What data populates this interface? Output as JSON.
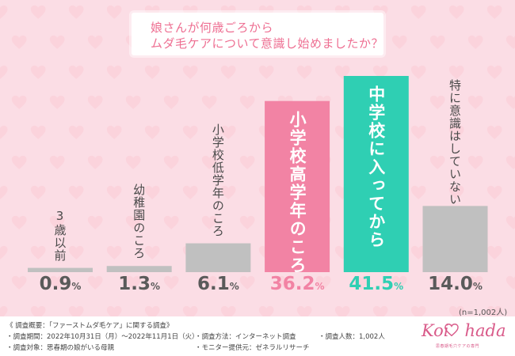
{
  "title": {
    "line1": "娘さんが何歳ごろから",
    "line2": "ムダ毛ケアについて意識し始めましたか？"
  },
  "chart_data": {
    "type": "bar",
    "categories": [
      "3歳以前",
      "幼稚園のころ",
      "小学校低学年のころ",
      "小学校高学年のころ",
      "中学校に入ってから",
      "特に意識はしていない"
    ],
    "values": [
      0.9,
      1.3,
      6.1,
      36.2,
      41.5,
      14.0
    ],
    "value_labels": [
      "0.9",
      "1.3",
      "6.1",
      "36.2",
      "41.5",
      "14.0"
    ],
    "unit": "%",
    "highlight": [
      3,
      4
    ],
    "colors": {
      "default": "#c0c0c0",
      "highlight_pink": "#f283a4",
      "highlight_green": "#2fcfb3",
      "value_default": "#5a5a5a",
      "value_pink": "#f283a4",
      "value_green": "#2fcfb3",
      "background": "#fbdde5",
      "title_text": "#ee6f92"
    },
    "ylim": [
      0,
      41.5
    ],
    "grid": false,
    "legend": "none"
  },
  "note": "(n=1,002人)",
  "footer": {
    "heading": "《 調査概要：「ファーストムダ毛ケア」に関する調査》",
    "period": "・調査期間：2022年10月31日（月）～2022年11月1日（火）",
    "target": "・調査対象：思春期の娘がいる母親",
    "method": "・調査方法：インターネット調査",
    "monitor": "・モニター提供元：ゼネラルリサーチ",
    "count": "・調査人数：1,002人"
  },
  "logo": {
    "left": "Koi",
    "right": "hada",
    "sub": "思春期毛穴ケアの専門"
  }
}
